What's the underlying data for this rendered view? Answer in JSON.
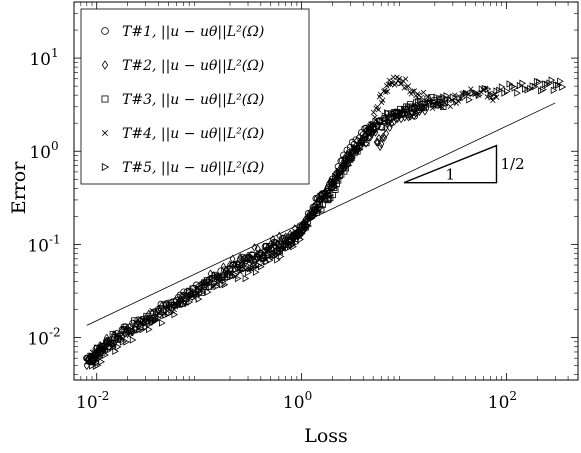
{
  "chart_data": {
    "type": "scatter",
    "xlabel": "Loss",
    "ylabel": "Error",
    "xscale": "log",
    "yscale": "log",
    "xlim": [
      0.006,
      500
    ],
    "ylim": [
      0.0035,
      40
    ],
    "grid": false,
    "legend_position": "top-left",
    "x_ticks": [
      {
        "value": 0.01,
        "base": "10",
        "exp": "-2"
      },
      {
        "value": 1,
        "base": "10",
        "exp": "0"
      },
      {
        "value": 100,
        "base": "10",
        "exp": "2"
      }
    ],
    "y_ticks": [
      {
        "value": 0.01,
        "base": "10",
        "exp": "-2"
      },
      {
        "value": 0.1,
        "base": "10",
        "exp": "-1"
      },
      {
        "value": 1,
        "base": "10",
        "exp": "0"
      },
      {
        "value": 10,
        "base": "10",
        "exp": "1"
      }
    ],
    "series": [
      {
        "name": "T#1, ||u − uθ||L²(Ω)",
        "marker": "circle",
        "points": [
          [
            0.008,
            0.006
          ],
          [
            0.009,
            0.0055
          ],
          [
            0.01,
            0.0065
          ],
          [
            0.012,
            0.008
          ],
          [
            0.015,
            0.01
          ],
          [
            0.02,
            0.012
          ],
          [
            0.03,
            0.015
          ],
          [
            0.04,
            0.02
          ],
          [
            0.06,
            0.025
          ],
          [
            0.08,
            0.03
          ],
          [
            0.1,
            0.035
          ],
          [
            0.15,
            0.045
          ],
          [
            0.2,
            0.055
          ],
          [
            0.3,
            0.07
          ],
          [
            0.4,
            0.08
          ],
          [
            0.5,
            0.09
          ],
          [
            0.6,
            0.1
          ],
          [
            0.8,
            0.12
          ],
          [
            1.0,
            0.15
          ],
          [
            1.3,
            0.25
          ],
          [
            1.6,
            0.35
          ],
          [
            2.0,
            0.5
          ],
          [
            2.5,
            0.8
          ],
          [
            3.0,
            1.1
          ],
          [
            4.0,
            1.5
          ],
          [
            5.0,
            1.8
          ],
          [
            7.0,
            2.2
          ],
          [
            10.0,
            2.5
          ],
          [
            14.0,
            2.8
          ]
        ]
      },
      {
        "name": "T#2, ||u − uθ||L²(Ω)",
        "marker": "diamond",
        "points": [
          [
            0.008,
            0.005
          ],
          [
            0.01,
            0.007
          ],
          [
            0.013,
            0.009
          ],
          [
            0.02,
            0.011
          ],
          [
            0.03,
            0.016
          ],
          [
            0.05,
            0.022
          ],
          [
            0.08,
            0.028
          ],
          [
            0.12,
            0.04
          ],
          [
            0.2,
            0.06
          ],
          [
            0.3,
            0.075
          ],
          [
            0.5,
            0.1
          ],
          [
            0.7,
            0.12
          ],
          [
            1.0,
            0.16
          ],
          [
            1.2,
            0.2
          ],
          [
            1.5,
            0.3
          ],
          [
            2.0,
            0.45
          ],
          [
            2.5,
            0.7
          ],
          [
            3.0,
            0.9
          ],
          [
            4.0,
            1.3
          ],
          [
            5.0,
            1.6
          ],
          [
            6.0,
            1.2
          ],
          [
            7.0,
            2.0
          ],
          [
            9.0,
            2.4
          ],
          [
            12.0,
            2.6
          ],
          [
            16.0,
            2.7
          ]
        ]
      },
      {
        "name": "T#3, ||u − uθ||L²(Ω)",
        "marker": "square",
        "points": [
          [
            0.009,
            0.006
          ],
          [
            0.011,
            0.0075
          ],
          [
            0.015,
            0.01
          ],
          [
            0.025,
            0.014
          ],
          [
            0.04,
            0.019
          ],
          [
            0.06,
            0.024
          ],
          [
            0.1,
            0.033
          ],
          [
            0.15,
            0.045
          ],
          [
            0.25,
            0.06
          ],
          [
            0.35,
            0.07
          ],
          [
            0.5,
            0.09
          ],
          [
            0.8,
            0.11
          ],
          [
            1.0,
            0.14
          ],
          [
            1.4,
            0.22
          ],
          [
            1.8,
            0.3
          ],
          [
            2.2,
            0.45
          ],
          [
            2.8,
            0.75
          ],
          [
            3.5,
            1.0
          ],
          [
            5.0,
            1.7
          ],
          [
            8.0,
            2.6
          ],
          [
            11.0,
            3.0
          ],
          [
            15.0,
            3.2
          ],
          [
            20.0,
            3.5
          ],
          [
            25.0,
            3.3
          ]
        ]
      },
      {
        "name": "T#4, ||u − uθ||L²(Ω)",
        "marker": "cross",
        "points": [
          [
            0.008,
            0.0055
          ],
          [
            0.01,
            0.007
          ],
          [
            0.014,
            0.009
          ],
          [
            0.02,
            0.012
          ],
          [
            0.03,
            0.016
          ],
          [
            0.05,
            0.021
          ],
          [
            0.08,
            0.027
          ],
          [
            0.12,
            0.038
          ],
          [
            0.2,
            0.05
          ],
          [
            0.3,
            0.055
          ],
          [
            0.4,
            0.07
          ],
          [
            0.6,
            0.09
          ],
          [
            0.8,
            0.11
          ],
          [
            1.0,
            0.14
          ],
          [
            1.3,
            0.22
          ],
          [
            1.7,
            0.33
          ],
          [
            2.2,
            0.5
          ],
          [
            2.8,
            0.8
          ],
          [
            3.5,
            1.2
          ],
          [
            4.5,
            1.8
          ],
          [
            5.5,
            3.0
          ],
          [
            6.5,
            4.5
          ],
          [
            7.5,
            5.5
          ],
          [
            9.0,
            6.0
          ],
          [
            11.0,
            5.0
          ],
          [
            14.0,
            4.0
          ],
          [
            20.0,
            3.2
          ],
          [
            30.0,
            3.5
          ],
          [
            40.0,
            4.2
          ],
          [
            60.0,
            4.5
          ],
          [
            80.0,
            3.8
          ]
        ]
      },
      {
        "name": "T#5, ||u − uθ||L²(Ω)",
        "marker": "triangle-right",
        "points": [
          [
            0.009,
            0.005
          ],
          [
            0.012,
            0.0065
          ],
          [
            0.018,
            0.009
          ],
          [
            0.03,
            0.013
          ],
          [
            0.05,
            0.018
          ],
          [
            0.08,
            0.024
          ],
          [
            0.13,
            0.035
          ],
          [
            0.2,
            0.045
          ],
          [
            0.3,
            0.05
          ],
          [
            0.45,
            0.065
          ],
          [
            0.6,
            0.08
          ],
          [
            0.8,
            0.1
          ],
          [
            1.0,
            0.13
          ],
          [
            1.3,
            0.2
          ],
          [
            1.7,
            0.32
          ],
          [
            2.2,
            0.5
          ],
          [
            3.0,
            0.85
          ],
          [
            4.0,
            1.3
          ],
          [
            5.5,
            2.0
          ],
          [
            8.0,
            2.5
          ],
          [
            12.0,
            2.9
          ],
          [
            18.0,
            3.3
          ],
          [
            30.0,
            3.8
          ],
          [
            50.0,
            4.2
          ],
          [
            80.0,
            4.4
          ],
          [
            120.0,
            4.8
          ],
          [
            180.0,
            5.0
          ],
          [
            250.0,
            5.2
          ],
          [
            350.0,
            4.9
          ]
        ]
      }
    ],
    "reference_line": {
      "points": [
        [
          0.008,
          0.0135
        ],
        [
          300,
          3.3
        ]
      ]
    },
    "slope_triangle": {
      "corners": [
        [
          10,
          0.46
        ],
        [
          80,
          0.46
        ],
        [
          80,
          1.15
        ]
      ],
      "base_label": "1",
      "height_label": "1/2"
    }
  }
}
